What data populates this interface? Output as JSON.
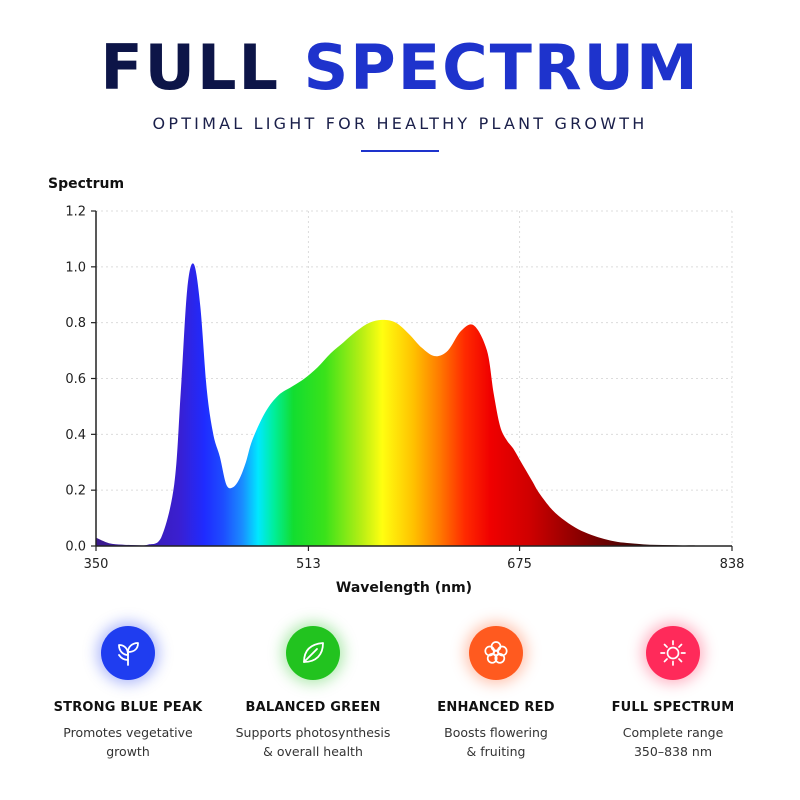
{
  "header": {
    "title_word1": "FULL",
    "title_word2": "SPECTRUM",
    "subtitle": "OPTIMAL LIGHT FOR HEALTHY PLANT GROWTH"
  },
  "chart_data": {
    "type": "area",
    "ylabel": "Spectrum",
    "xlabel": "Wavelength (nm)",
    "xlim": [
      350,
      838
    ],
    "ylim": [
      0,
      1.2
    ],
    "x_ticks": [
      350,
      513,
      675,
      838
    ],
    "y_ticks": [
      "0.0",
      "0.2",
      "0.4",
      "0.6",
      "0.8",
      "1.0",
      "1.2"
    ],
    "grid": true,
    "x": [
      350,
      360,
      370,
      380,
      390,
      400,
      410,
      415,
      420,
      425,
      430,
      435,
      440,
      445,
      450,
      455,
      460,
      465,
      470,
      480,
      490,
      500,
      510,
      520,
      530,
      540,
      550,
      560,
      570,
      580,
      590,
      600,
      610,
      620,
      630,
      640,
      650,
      655,
      660,
      665,
      670,
      675,
      680,
      685,
      690,
      700,
      710,
      720,
      730,
      740,
      750,
      760,
      770,
      780,
      790,
      800,
      810,
      820,
      838
    ],
    "y": [
      0.03,
      0.01,
      0.005,
      0.003,
      0.005,
      0.03,
      0.22,
      0.55,
      0.92,
      1.01,
      0.86,
      0.56,
      0.4,
      0.32,
      0.22,
      0.21,
      0.24,
      0.3,
      0.38,
      0.48,
      0.54,
      0.57,
      0.6,
      0.64,
      0.69,
      0.73,
      0.77,
      0.8,
      0.81,
      0.8,
      0.76,
      0.71,
      0.68,
      0.7,
      0.77,
      0.79,
      0.7,
      0.55,
      0.43,
      0.38,
      0.35,
      0.31,
      0.27,
      0.23,
      0.19,
      0.13,
      0.09,
      0.06,
      0.04,
      0.025,
      0.015,
      0.01,
      0.006,
      0.004,
      0.003,
      0.002,
      0.002,
      0.001,
      0.0
    ]
  },
  "features": [
    {
      "title": "STRONG BLUE PEAK",
      "desc_line1": "Promotes vegetative",
      "desc_line2": "growth",
      "icon": "leaves-icon",
      "color": "#1f3df0"
    },
    {
      "title": "BALANCED GREEN",
      "desc_line1": "Supports photosynthesis",
      "desc_line2": "& overall health",
      "icon": "leaf-icon",
      "color": "#22c31f"
    },
    {
      "title": "ENHANCED RED",
      "desc_line1": "Boosts flowering",
      "desc_line2": "& fruiting",
      "icon": "flower-icon",
      "color": "#ff5a1f"
    },
    {
      "title": "FULL SPECTRUM",
      "desc_line1": "Complete range",
      "desc_line2": "350–838 nm",
      "icon": "sun-icon",
      "color": "#ff2a5a"
    }
  ]
}
